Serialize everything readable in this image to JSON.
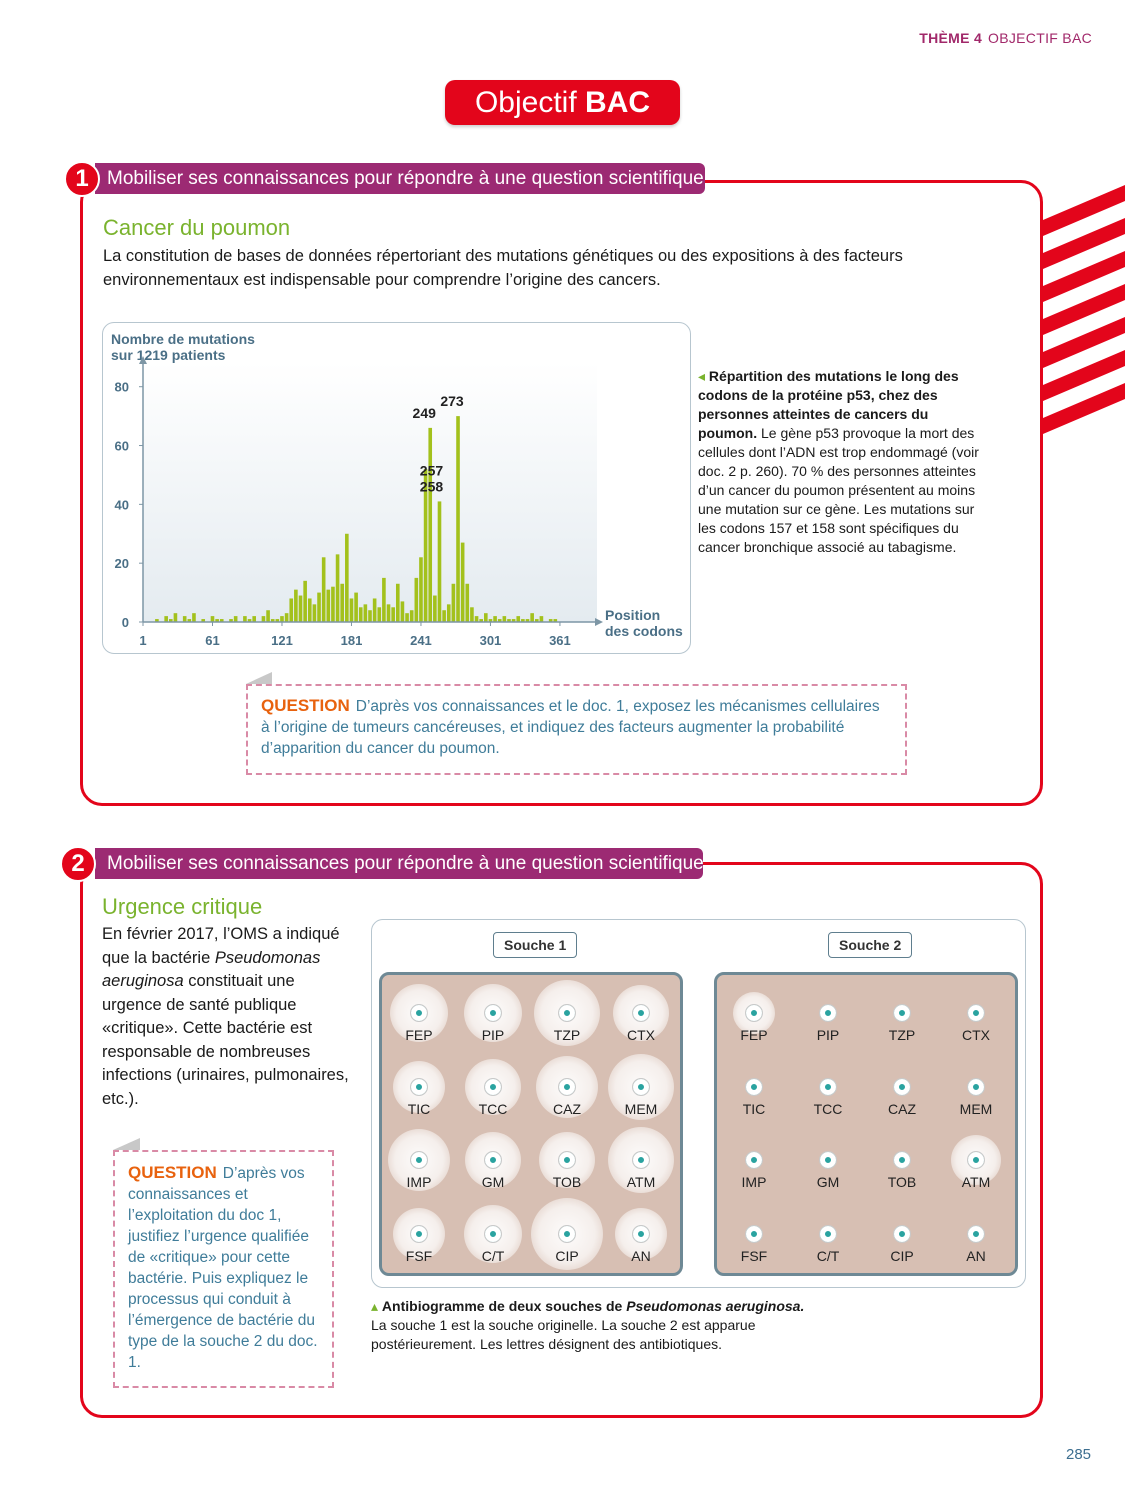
{
  "header": {
    "theme": "THÈME 4",
    "section": "OBJECTIF BAC"
  },
  "title": {
    "light": "Objectif",
    "bold": "BAC"
  },
  "exercises": [
    {
      "number": "1",
      "banner": "Mobiliser ses connaissances pour répondre à une question scientifique",
      "heading": "Cancer du poumon",
      "intro": "La constitution de bases de données répertoriant des mutations génétiques ou des expositions à des facteurs environnementaux est indispensable pour comprendre l’origine des cancers.",
      "chart_data": {
        "type": "bar",
        "y_label": [
          "Nombre de mutations",
          "sur 1219 patients"
        ],
        "x_label": [
          "Position",
          "des codons"
        ],
        "x": [
          13,
          17,
          21,
          25,
          29,
          33,
          37,
          41,
          45,
          49,
          53,
          57,
          61,
          65,
          69,
          73,
          77,
          81,
          85,
          89,
          93,
          97,
          101,
          105,
          109,
          113,
          117,
          121,
          125,
          129,
          133,
          137,
          141,
          145,
          149,
          153,
          157,
          161,
          165,
          169,
          173,
          177,
          181,
          185,
          189,
          193,
          197,
          201,
          205,
          209,
          213,
          217,
          221,
          225,
          229,
          233,
          237,
          241,
          245,
          249,
          253,
          257,
          261,
          265,
          269,
          273,
          277,
          281,
          285,
          289,
          293,
          297,
          301,
          305,
          309,
          313,
          317,
          321,
          325,
          329,
          333,
          337,
          341,
          345,
          349,
          353,
          357
        ],
        "values": [
          1,
          0,
          2,
          1,
          3,
          0,
          2,
          1,
          3,
          0,
          1,
          0,
          2,
          1,
          1,
          0,
          1,
          2,
          0,
          2,
          1,
          2,
          0,
          2,
          4,
          1,
          1,
          2,
          3,
          8,
          11,
          9,
          14,
          8,
          6,
          10,
          22,
          11,
          12,
          23,
          13,
          30,
          8,
          10,
          5,
          6,
          4,
          8,
          5,
          15,
          6,
          5,
          13,
          7,
          3,
          4,
          15,
          22,
          52,
          66,
          9,
          41,
          4,
          6,
          13,
          70,
          27,
          13,
          5,
          2,
          1,
          3,
          1,
          2,
          1,
          2,
          1,
          1,
          2,
          1,
          1,
          3,
          1,
          2,
          0,
          1,
          1
        ],
        "color": "#a3c11c",
        "xlim": [
          1,
          393
        ],
        "xticks": [
          1,
          61,
          121,
          181,
          241,
          301,
          361
        ],
        "ylim": [
          0,
          85
        ],
        "yticks": [
          0,
          20,
          40,
          60,
          80
        ],
        "annotations": [
          {
            "text": "257",
            "x": 257
          },
          {
            "text": "258",
            "x": 258
          },
          {
            "text": "249",
            "x": 249
          },
          {
            "text": "273",
            "x": 273
          }
        ]
      },
      "caption": {
        "bold": "Répartition des mutations le long des codons de la protéine p53, chez des personnes atteintes de cancers du poumon.",
        "text": "Le gène p53 provoque la mort des cellules dont l’ADN est trop endommagé (voir doc. 2 p. 260). 70 % des personnes atteintes d’un cancer du poumon présentent au moins une mutation sur ce gène. Les mutations sur les codons 157 et 158 sont spécifiques du cancer bronchique associé au tabagisme."
      },
      "question": {
        "label": "QUESTION",
        "text": "D’après vos connaissances et le doc. 1, exposez les mécanismes cellulaires à l’origine de tumeurs cancéreuses, et indiquez des facteurs augmenter la probabilité d’apparition du cancer du poumon."
      }
    },
    {
      "number": "2",
      "banner": "Mobiliser ses connaissances pour répondre à une question scientifique",
      "heading": "Urgence critique",
      "intro": [
        "En février 2017, l’OMS a indiqué que la bactérie ",
        "Pseudomonas aeruginosa",
        " constituait une urgence de santé publique «critique». Cette bactérie est responsable de nombreuses infections (urinaires, pulmonaires, etc.)."
      ],
      "antibiogram": {
        "antibiotics": [
          "FEP",
          "PIP",
          "TZP",
          "CTX",
          "TIC",
          "TCC",
          "CAZ",
          "MEM",
          "IMP",
          "GM",
          "TOB",
          "ATM",
          "FSF",
          "C/T",
          "CIP",
          "AN"
        ],
        "strains": [
          {
            "name": "Souche 1",
            "halos": [
              58,
              58,
              66,
              56,
              52,
              56,
              62,
              66,
              62,
              56,
              56,
              66,
              52,
              58,
              72,
              52
            ]
          },
          {
            "name": "Souche 2",
            "halos": [
              42,
              0,
              0,
              0,
              0,
              0,
              0,
              0,
              0,
              0,
              0,
              50,
              0,
              0,
              0,
              0
            ]
          }
        ]
      },
      "caption": {
        "bold": "Antibiogramme de deux souches de ",
        "italic": "Pseudomonas aeruginosa.",
        "text": "La souche 1 est la souche originelle. La souche 2 est apparue postérieurement. Les lettres désignent des antibiotiques."
      },
      "question": {
        "label": "QUESTION",
        "text": "D’après vos connaissances et l’exploitation du doc 1, justifiez l’urgence qualifiée de «critique» pour cette bactérie. Puis expliquez le processus qui conduit à l’émergence de bactérie du type de la souche 2 du doc. 1."
      }
    }
  ],
  "page_number": "285"
}
